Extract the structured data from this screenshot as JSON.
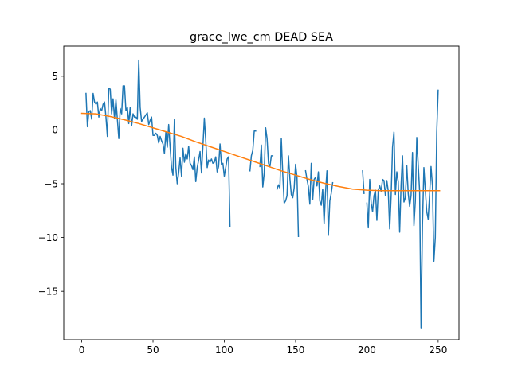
{
  "chart_data": {
    "type": "line",
    "title": "grace_lwe_cm DEAD SEA",
    "xlabel": "",
    "ylabel": "",
    "xlim": [
      -12.6,
      264.6
    ],
    "ylim": [
      -19.5,
      7.8
    ],
    "xticks": [
      0,
      50,
      100,
      150,
      200,
      250
    ],
    "yticks": [
      5,
      0,
      -5,
      -10,
      -15
    ],
    "ytick_labels": [
      "5",
      "0",
      "−5",
      "−10",
      "−15"
    ],
    "grid": false,
    "legend": "none",
    "series": [
      {
        "color": "#1f77b4",
        "segments": [
          {
            "x0": 3,
            "values": [
              3.4,
              0.3,
              1.7,
              1.8,
              1.0,
              3.4,
              2.6,
              2.4,
              2.6,
              1.2,
              2.0,
              1.8,
              2.4,
              2.6,
              1.2,
              -0.6,
              3.9,
              3.8,
              1.5,
              2.9,
              1.1,
              2.8,
              1.0,
              -0.8,
              2.0,
              1.5,
              4.1,
              4.1,
              1.8,
              2.1,
              0.6,
              2.1,
              0.4,
              1.5,
              1.2,
              1.2,
              1.0,
              6.5,
              2.1,
              0.8,
              1.0,
              1.2,
              1.4,
              1.6,
              0.5,
              0.9,
              1.2,
              -0.5,
              -0.5,
              -0.3,
              -0.5,
              -1.2,
              -0.6,
              -1.0,
              -1.3,
              -2.2,
              -0.2,
              -1.6,
              0.5,
              -1.6,
              -3.5,
              -4.2,
              1.0,
              -3.5,
              -5.0,
              -4.0,
              -2.6,
              -4.3,
              -1.7,
              -3.0,
              -2.2,
              -2.7,
              -1.5,
              -3.1,
              -3.3,
              -3.7,
              -2.5,
              -4.8,
              -3.5,
              -2.8,
              -2.0,
              -4.0,
              -1.5,
              1.1,
              -1.0,
              -3.5,
              -2.8,
              -3.0,
              -2.7,
              -3.1,
              -3.0,
              -2.5,
              -3.9,
              -3.4,
              -1.3,
              -3.2,
              -3.1,
              -4.3,
              -3.5,
              -2.7,
              -2.5,
              -9.0
            ]
          },
          {
            "x0": 118,
            "values": [
              -3.8,
              -2.4,
              -1.9,
              -0.1,
              -0.1
            ]
          },
          {
            "x0": 125,
            "values": [
              -3.4,
              -1.4,
              -5.3,
              -4.0,
              0.2,
              -0.8,
              -3.1,
              -3.4,
              -2.4,
              -2.4
            ]
          },
          {
            "x0": 137,
            "values": [
              -5.5,
              -5.1,
              -5.4,
              -0.8,
              -4.1,
              -6.8,
              -6.6,
              -6.1,
              -2.4,
              -4.5,
              -6.0,
              -6.3,
              -5.4,
              -3.2,
              -4.4,
              -9.9
            ]
          },
          {
            "x0": 157,
            "values": [
              -3.8,
              -4.6,
              -5.3,
              -6.9,
              -3.1,
              -6.5,
              -4.6,
              -4.4,
              -5.2,
              -3.9,
              -6.6,
              -7.0,
              -5.5,
              -8.7,
              -5.8,
              -3.8,
              -9.8,
              -6.6,
              -5.9,
              -4.9
            ]
          },
          {
            "x0": 197,
            "values": [
              -3.8,
              -5.9
            ]
          },
          {
            "x0": 200,
            "values": [
              -6.8,
              -9.1,
              -4.6,
              -6.8,
              -7.6,
              -6.1,
              -5.6,
              -8.4,
              -5.6,
              -5.2,
              -5.7,
              -4.6,
              -4.7,
              -6.1,
              -4.7,
              -5.7,
              -9.2,
              -6.2,
              -1.6,
              -0.2,
              -6.0,
              -3.9,
              -4.8,
              -9.5,
              -5.1,
              -2.4,
              -6.7,
              -6.3,
              -3.3,
              -5.9,
              -7.1,
              -6.1,
              -2.1,
              -8.9,
              -6.6,
              -0.7,
              -3.2,
              -5.7,
              -18.4,
              -8.8,
              -3.5,
              -5.6,
              -7.6,
              -8.3,
              -6.0,
              -3.4,
              -5.2,
              -12.2,
              -10.0,
              -0.2,
              3.7
            ]
          }
        ]
      },
      {
        "color": "#ff7f0e",
        "x": [
          0,
          10,
          20,
          30,
          40,
          50,
          60,
          70,
          80,
          90,
          100,
          110,
          120,
          130,
          140,
          150,
          160,
          170,
          180,
          190,
          200,
          210,
          220,
          230,
          240,
          251
        ],
        "values": [
          1.55,
          1.5,
          1.25,
          0.95,
          0.6,
          0.2,
          -0.2,
          -0.6,
          -1.1,
          -1.55,
          -2.0,
          -2.45,
          -2.9,
          -3.35,
          -3.8,
          -4.2,
          -4.6,
          -4.95,
          -5.25,
          -5.5,
          -5.6,
          -5.65,
          -5.65,
          -5.65,
          -5.65,
          -5.65
        ]
      }
    ]
  }
}
